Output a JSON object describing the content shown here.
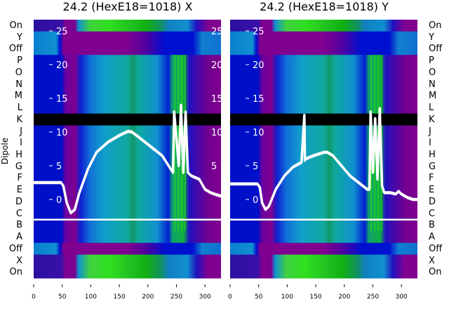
{
  "chart_data": [
    {
      "type": "heatmap",
      "title": "24.2 (HexE18=1018) X",
      "ylabel": "Dipole",
      "xlabel": "",
      "row_labels": [
        "On",
        "Y",
        "Off",
        "P",
        "O",
        "N",
        "M",
        "L",
        "K",
        "J",
        "I",
        "H",
        "G",
        "F",
        "E",
        "D",
        "C",
        "B",
        "A",
        "Off",
        "X",
        "On"
      ],
      "xlim": [
        0,
        328
      ],
      "x_ticks": [
        0,
        50,
        100,
        150,
        200,
        250,
        300
      ],
      "overlay_ylim": [
        -3,
        27
      ],
      "overlay_ticks": [
        0,
        5,
        10,
        15,
        20,
        25
      ],
      "reference_line_y": -3,
      "overlay": {
        "type": "line",
        "x": [
          0,
          48,
          52,
          58,
          65,
          72,
          80,
          95,
          110,
          130,
          150,
          165,
          172,
          180,
          195,
          210,
          225,
          240,
          244,
          246,
          250,
          254,
          258,
          262,
          266,
          270,
          276,
          290,
          300,
          310,
          320,
          328
        ],
        "y": [
          2.5,
          2.5,
          2,
          -0.5,
          -2,
          -1.5,
          1,
          4.5,
          7,
          8.5,
          9.5,
          10.1,
          10,
          9.5,
          8.5,
          7.5,
          6.5,
          4.5,
          4,
          13,
          9,
          5,
          14,
          4,
          13,
          4,
          3.5,
          3,
          1.5,
          1,
          0.7,
          0.5
        ]
      }
    },
    {
      "type": "heatmap",
      "title": "24.2 (HexE18=1018) Y",
      "ylabel": "",
      "xlabel": "",
      "row_labels": [
        "On",
        "Y",
        "Off",
        "P",
        "O",
        "N",
        "M",
        "L",
        "K",
        "J",
        "I",
        "H",
        "G",
        "F",
        "E",
        "D",
        "C",
        "B",
        "A",
        "Off",
        "X",
        "On"
      ],
      "xlim": [
        0,
        328
      ],
      "x_ticks": [
        0,
        50,
        100,
        150,
        200,
        250,
        300
      ],
      "overlay_ylim": [
        -3,
        27
      ],
      "overlay_ticks": [
        0,
        5,
        10,
        15,
        20,
        25
      ],
      "reference_line_y": -3,
      "overlay": {
        "type": "line",
        "x": [
          0,
          48,
          52,
          56,
          62,
          68,
          80,
          95,
          110,
          125,
          130,
          131,
          132,
          140,
          150,
          165,
          170,
          180,
          195,
          210,
          225,
          240,
          244,
          246,
          250,
          254,
          258,
          262,
          266,
          270,
          280,
          290,
          295,
          300,
          310,
          320,
          328
        ],
        "y": [
          2.3,
          2.3,
          1.8,
          -0.5,
          -1.5,
          -1,
          1.5,
          3.5,
          4.8,
          5.5,
          12.5,
          5.8,
          6,
          6.3,
          6.6,
          7,
          7,
          6.5,
          5,
          3.5,
          2.5,
          1.5,
          1.5,
          13,
          4,
          12,
          3,
          13.5,
          2,
          1,
          1,
          0.8,
          1.2,
          0.8,
          0.3,
          0,
          0
        ]
      }
    }
  ]
}
